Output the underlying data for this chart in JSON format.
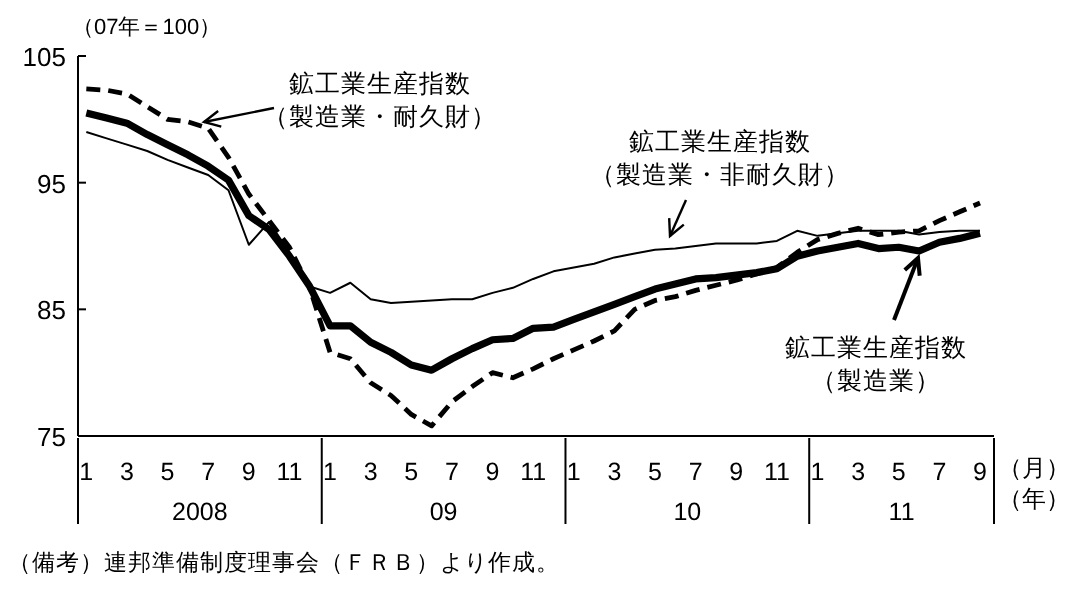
{
  "chart_data": {
    "type": "line",
    "ylabel": "（07年＝100）",
    "xlabel": "（月）（年）",
    "x": [
      "2008-01",
      "2008-02",
      "2008-03",
      "2008-04",
      "2008-05",
      "2008-06",
      "2008-07",
      "2008-08",
      "2008-09",
      "2008-10",
      "2008-11",
      "2008-12",
      "2009-01",
      "2009-02",
      "2009-03",
      "2009-04",
      "2009-05",
      "2009-06",
      "2009-07",
      "2009-08",
      "2009-09",
      "2009-10",
      "2009-11",
      "2009-12",
      "2010-01",
      "2010-02",
      "2010-03",
      "2010-04",
      "2010-05",
      "2010-06",
      "2010-07",
      "2010-08",
      "2010-09",
      "2010-10",
      "2010-11",
      "2010-12",
      "2011-01",
      "2011-02",
      "2011-03",
      "2011-04",
      "2011-05",
      "2011-06",
      "2011-07",
      "2011-08",
      "2011-09"
    ],
    "xlim": [
      "2007-12-19",
      "2011-09-22"
    ],
    "xticks": [
      {
        "value": "2008-01",
        "label": "1"
      },
      {
        "value": "2008-03",
        "label": "3"
      },
      {
        "value": "2008-05",
        "label": "5"
      },
      {
        "value": "2008-07",
        "label": "7"
      },
      {
        "value": "2008-09",
        "label": "9"
      },
      {
        "value": "2008-11",
        "label": "11"
      },
      {
        "value": "2009-01",
        "label": "1"
      },
      {
        "value": "2009-03",
        "label": "3"
      },
      {
        "value": "2009-05",
        "label": "5"
      },
      {
        "value": "2009-07",
        "label": "7"
      },
      {
        "value": "2009-09",
        "label": "9"
      },
      {
        "value": "2009-11",
        "label": "11"
      },
      {
        "value": "2010-01",
        "label": "1"
      },
      {
        "value": "2010-03",
        "label": "3"
      },
      {
        "value": "2010-05",
        "label": "5"
      },
      {
        "value": "2010-07",
        "label": "7"
      },
      {
        "value": "2010-09",
        "label": "9"
      },
      {
        "value": "2010-11",
        "label": "11"
      },
      {
        "value": "2011-01",
        "label": "1"
      },
      {
        "value": "2011-03",
        "label": "3"
      },
      {
        "value": "2011-05",
        "label": "5"
      },
      {
        "value": "2011-07",
        "label": "7"
      },
      {
        "value": "2011-09",
        "label": "9"
      }
    ],
    "ylim": [
      75,
      105
    ],
    "yticks": [
      75,
      85,
      95,
      105
    ],
    "series": [
      {
        "name": "鉱工業生産指数（製造業）",
        "color": "#000000",
        "line_style": "solid",
        "values": [
          100.5,
          100.1,
          99.7,
          98.8,
          98.0,
          97.2,
          96.3,
          95.2,
          92.4,
          91.3,
          89.2,
          86.8,
          83.7,
          83.7,
          82.4,
          81.6,
          80.6,
          80.2,
          81.1,
          81.9,
          82.6,
          82.7,
          83.5,
          83.6,
          84.2,
          84.8,
          85.4,
          86.0,
          86.6,
          87.0,
          87.4,
          87.5,
          87.7,
          87.9,
          88.2,
          89.2,
          89.6,
          89.9,
          90.2,
          89.8,
          89.9,
          89.6,
          90.3,
          90.6,
          91.0
        ]
      },
      {
        "name": "鉱工業生産指数（製造業・耐久財）",
        "color": "#000000",
        "line_style": "dashed",
        "values": [
          102.4,
          102.3,
          102.0,
          101.0,
          100.0,
          99.8,
          99.3,
          97.0,
          94.1,
          92.0,
          89.9,
          86.7,
          81.6,
          81.1,
          79.2,
          78.2,
          76.7,
          75.8,
          77.7,
          78.9,
          80.0,
          79.6,
          80.3,
          81.1,
          81.8,
          82.5,
          83.3,
          85.0,
          85.7,
          86.0,
          86.5,
          86.9,
          87.3,
          87.8,
          88.3,
          89.5,
          90.5,
          91.0,
          91.4,
          90.9,
          91.1,
          91.2,
          92.0,
          92.7,
          93.4
        ]
      },
      {
        "name": "鉱工業生産指数（製造業・非耐久財）",
        "color": "#000000",
        "line_style": "solid",
        "values": [
          99.0,
          98.5,
          98.0,
          97.5,
          96.8,
          96.2,
          95.6,
          94.4,
          90.1,
          91.9,
          89.5,
          86.8,
          86.3,
          87.1,
          85.8,
          85.5,
          85.6,
          85.7,
          85.8,
          85.8,
          86.3,
          86.7,
          87.4,
          88.0,
          88.3,
          88.6,
          89.1,
          89.4,
          89.7,
          89.8,
          90.0,
          90.2,
          90.2,
          90.2,
          90.4,
          91.2,
          90.8,
          91.0,
          91.2,
          91.2,
          91.2,
          90.9,
          91.1,
          91.2,
          91.2
        ]
      }
    ],
    "annotations": [
      "2008",
      "09",
      "10",
      "11",
      "（備考）連邦準備制度理事会（ＦＲＢ）より作成。"
    ]
  }
}
